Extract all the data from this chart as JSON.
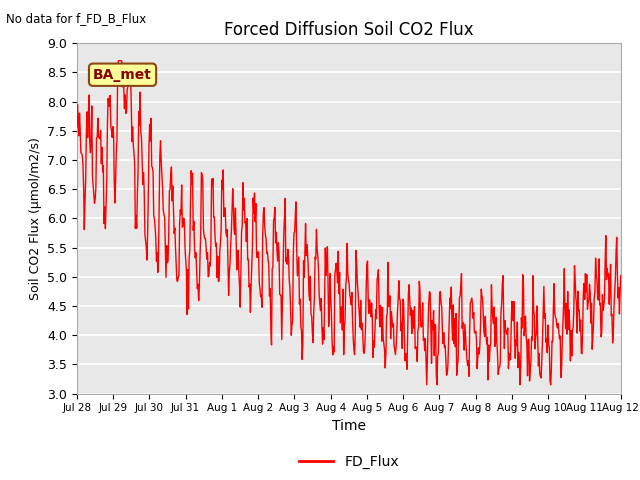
{
  "title": "Forced Diffusion Soil CO2 Flux",
  "xlabel": "Time",
  "ylabel": "Soil CO2 Flux (μmol/m2/s)",
  "ylim": [
    3.0,
    9.0
  ],
  "yticks": [
    3.0,
    3.5,
    4.0,
    4.5,
    5.0,
    5.5,
    6.0,
    6.5,
    7.0,
    7.5,
    8.0,
    8.5,
    9.0
  ],
  "line_color": "#FF0000",
  "line_width": 1.0,
  "legend_label": "FD_Flux",
  "legend_line_color": "#FF0000",
  "top_left_text": "No data for f_FD_B_Flux",
  "box_label": "BA_met",
  "box_facecolor": "#FFFF99",
  "box_edgecolor": "#8B4513",
  "box_textcolor": "#8B0000",
  "background_color": "#E8E8E8",
  "grid_color": "#FFFFFF",
  "xtick_labels": [
    "Jul 28",
    "Jul 29",
    "Jul 30",
    "Jul 31",
    "Aug 1",
    "Aug 2",
    "Aug 3",
    "Aug 4",
    "Aug 5",
    "Aug 6",
    "Aug 7",
    "Aug 8",
    "Aug 9",
    "Aug 10",
    "Aug 11",
    "Aug 12"
  ],
  "num_points": 800
}
